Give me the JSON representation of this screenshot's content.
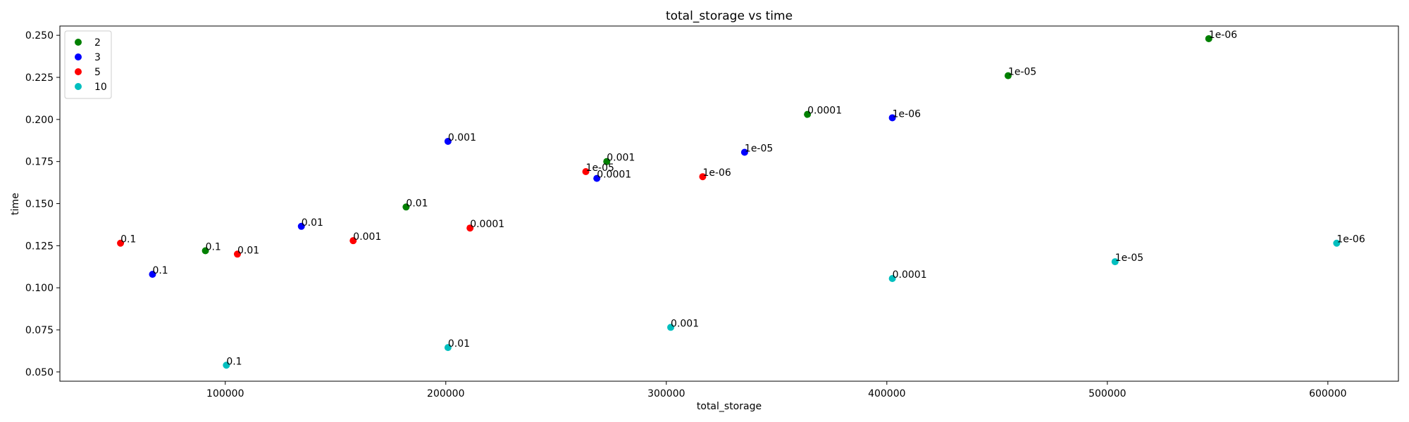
{
  "chart_data": {
    "type": "scatter",
    "title": "total_storage vs time",
    "xlabel": "total_storage",
    "ylabel": "time",
    "xlim": [
      25000,
      632000
    ],
    "ylim": [
      0.0445,
      0.2555
    ],
    "xticks": [
      100000,
      200000,
      300000,
      400000,
      500000,
      600000
    ],
    "yticks": [
      0.05,
      0.075,
      0.1,
      0.125,
      0.15,
      0.175,
      0.2,
      0.225,
      0.25
    ],
    "xtick_labels": [
      "100000",
      "200000",
      "300000",
      "400000",
      "500000",
      "600000"
    ],
    "ytick_labels": [
      "0.050",
      "0.075",
      "0.100",
      "0.125",
      "0.150",
      "0.175",
      "0.200",
      "0.225",
      "0.250"
    ],
    "grid": false,
    "legend_position": "top-left",
    "series": [
      {
        "name": "2",
        "color": "#008000",
        "points": [
          {
            "x": 91000,
            "y": 0.122,
            "label": "0.1"
          },
          {
            "x": 182000,
            "y": 0.148,
            "label": "0.01"
          },
          {
            "x": 273000,
            "y": 0.175,
            "label": "0.001"
          },
          {
            "x": 364000,
            "y": 0.203,
            "label": "0.0001"
          },
          {
            "x": 455000,
            "y": 0.226,
            "label": "1e-05"
          },
          {
            "x": 546000,
            "y": 0.248,
            "label": "1e-06"
          }
        ]
      },
      {
        "name": "3",
        "color": "#0000ff",
        "points": [
          {
            "x": 67000,
            "y": 0.108,
            "label": "0.1"
          },
          {
            "x": 134500,
            "y": 0.1365,
            "label": "0.01"
          },
          {
            "x": 201000,
            "y": 0.187,
            "label": "0.001"
          },
          {
            "x": 268500,
            "y": 0.165,
            "label": "0.0001"
          },
          {
            "x": 335500,
            "y": 0.1805,
            "label": "1e-05"
          },
          {
            "x": 402500,
            "y": 0.201,
            "label": "1e-06"
          }
        ]
      },
      {
        "name": "5",
        "color": "#ff0000",
        "points": [
          {
            "x": 52500,
            "y": 0.1265,
            "label": "0.1"
          },
          {
            "x": 105500,
            "y": 0.12,
            "label": "0.01"
          },
          {
            "x": 158000,
            "y": 0.128,
            "label": "0.001"
          },
          {
            "x": 211000,
            "y": 0.1355,
            "label": "0.0001"
          },
          {
            "x": 263500,
            "y": 0.169,
            "label": "1e-05"
          },
          {
            "x": 316500,
            "y": 0.166,
            "label": "1e-06"
          }
        ]
      },
      {
        "name": "10",
        "color": "#00bfbf",
        "points": [
          {
            "x": 100500,
            "y": 0.054,
            "label": "0.1"
          },
          {
            "x": 201000,
            "y": 0.0645,
            "label": "0.01"
          },
          {
            "x": 302000,
            "y": 0.0765,
            "label": "0.001"
          },
          {
            "x": 402500,
            "y": 0.1055,
            "label": "0.0001"
          },
          {
            "x": 503500,
            "y": 0.1155,
            "label": "1e-05"
          },
          {
            "x": 604000,
            "y": 0.1265,
            "label": "1e-06"
          }
        ]
      }
    ]
  }
}
